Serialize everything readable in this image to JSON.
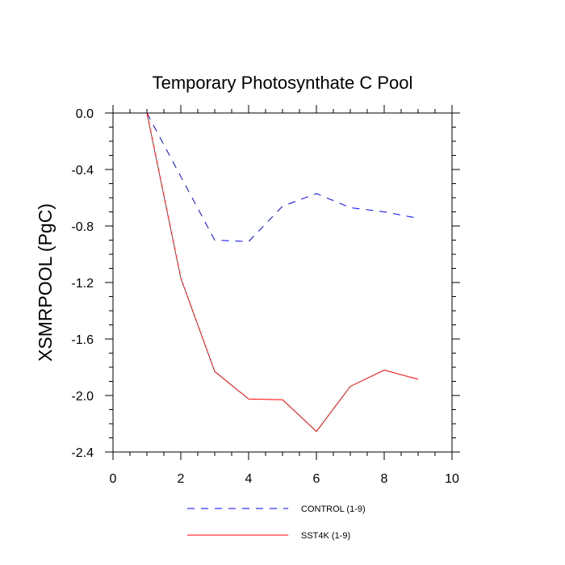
{
  "chart_data": {
    "type": "line",
    "title": "Temporary Photosynthate C Pool",
    "xlabel": "",
    "ylabel": "XSMRPOOL  (PgC)",
    "xlim": [
      0,
      10
    ],
    "ylim": [
      -2.4,
      0.0
    ],
    "xticks": [
      0,
      2,
      4,
      6,
      8,
      10
    ],
    "xtick_labels": [
      "0",
      "2",
      "4",
      "6",
      "8",
      "10"
    ],
    "yticks": [
      0.0,
      -0.4,
      -0.8,
      -1.2,
      -1.6,
      -2.0,
      -2.4
    ],
    "ytick_labels": [
      "0.0",
      "-0.4",
      "-0.8",
      "-1.2",
      "-1.6",
      "-2.0",
      "-2.4"
    ],
    "grid": false,
    "legend_position": "bottom-center",
    "x": [
      1,
      2,
      3,
      4,
      5,
      6,
      7,
      8,
      9
    ],
    "series": [
      {
        "name": "CONTROL (1-9)",
        "color": "#0000ff",
        "dash": "dashed",
        "values": [
          0.0,
          -0.45,
          -0.9,
          -0.91,
          -0.66,
          -0.57,
          -0.67,
          -0.7,
          -0.745
        ]
      },
      {
        "name": "SST4K (1-9)",
        "color": "#ff0000",
        "dash": "solid",
        "values": [
          0.0,
          -1.17,
          -1.83,
          -2.025,
          -2.03,
          -2.255,
          -1.935,
          -1.82,
          -1.885
        ]
      }
    ]
  }
}
